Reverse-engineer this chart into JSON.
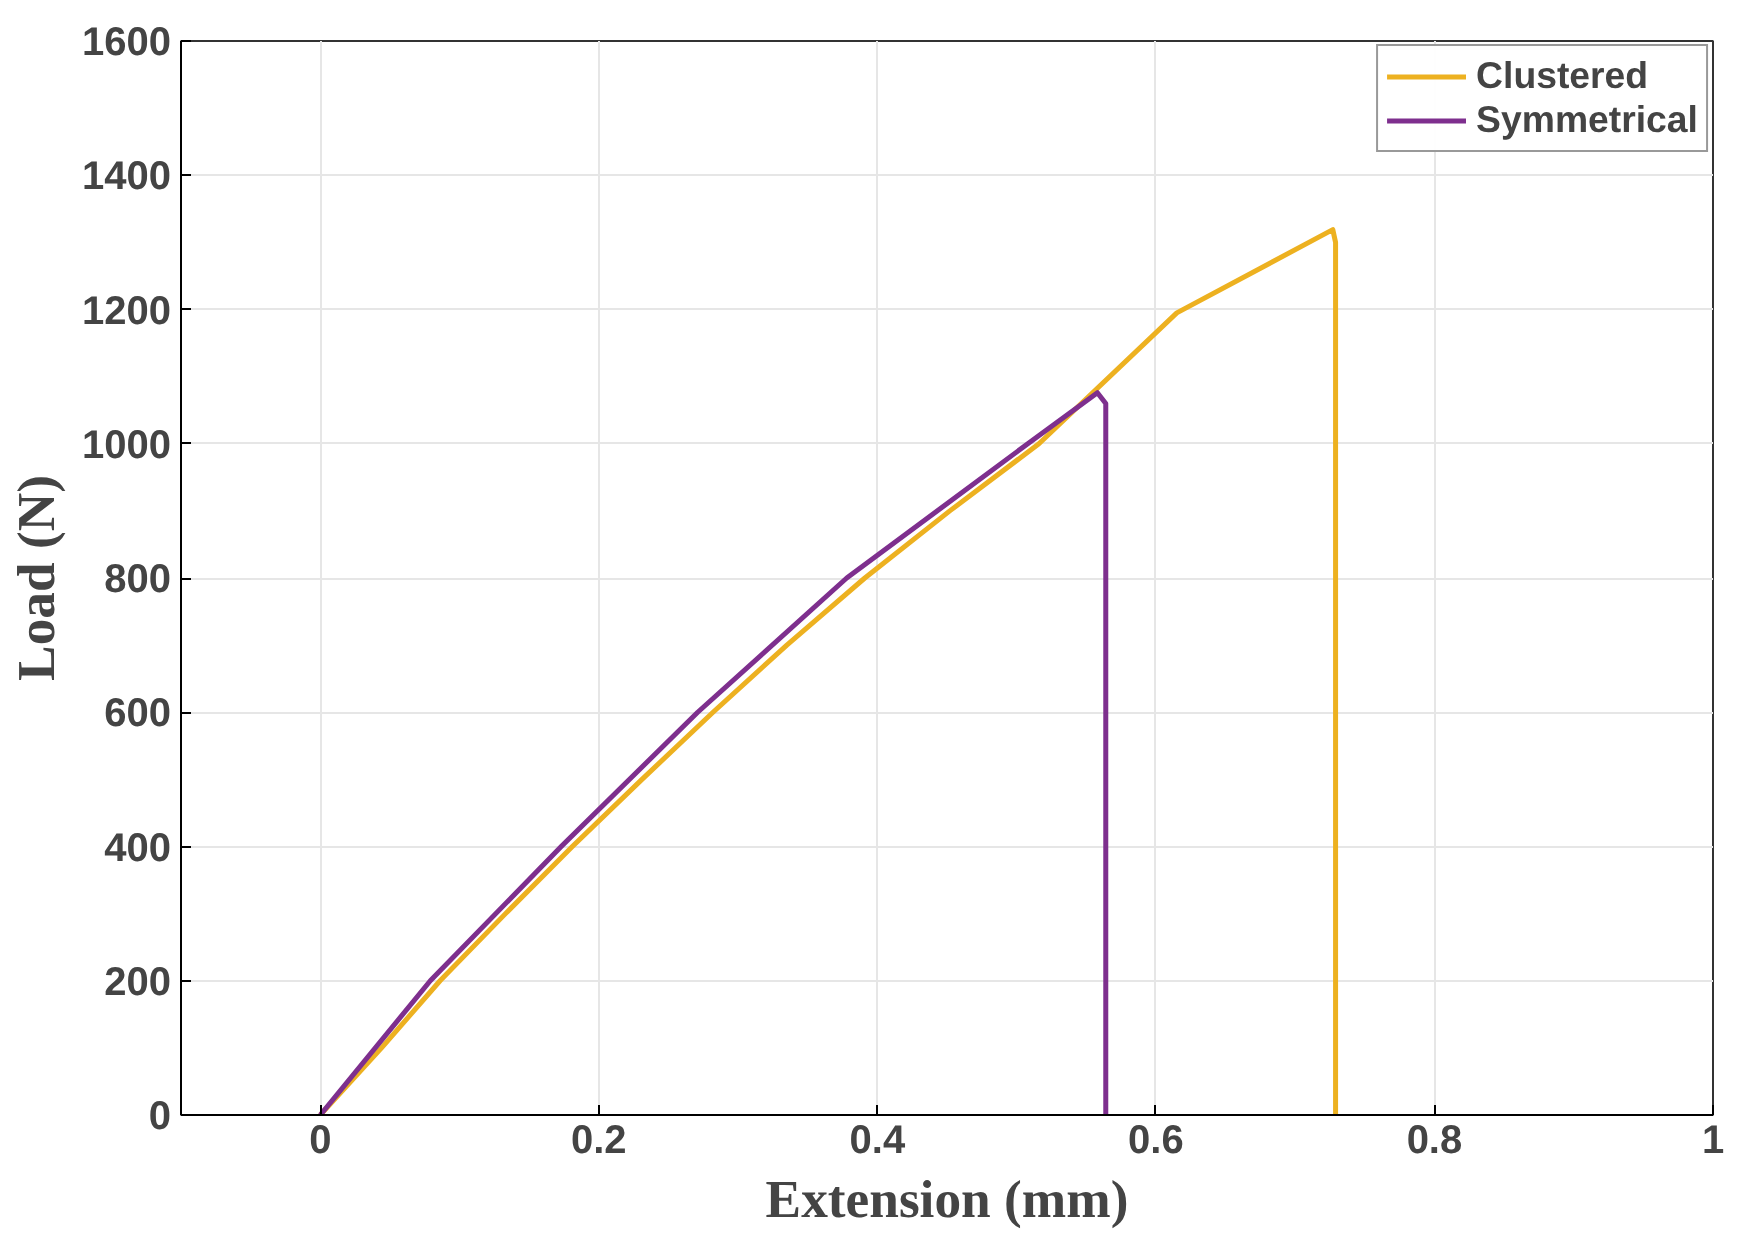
{
  "chart_data": {
    "type": "line",
    "xlabel": "Extension (mm)",
    "ylabel": "Load (N)",
    "xlim": [
      -0.1,
      1
    ],
    "ylim": [
      0,
      1600
    ],
    "xticks": [
      0,
      0.2,
      0.4,
      0.6,
      0.8,
      1
    ],
    "yticks": [
      0,
      200,
      400,
      600,
      800,
      1000,
      1200,
      1400,
      1600
    ],
    "grid": true,
    "legend": "top right",
    "line_style": "solid",
    "series": [
      {
        "name": "Clustered",
        "color": "#edb120",
        "x": [
          0,
          0.044,
          0.086,
          0.133,
          0.181,
          0.231,
          0.282,
          0.335,
          0.391,
          0.452,
          0.516,
          0.615,
          0.727,
          0.729,
          0.729
        ],
        "values": [
          0,
          100,
          200,
          300,
          400,
          500,
          600,
          700,
          800,
          900,
          1000,
          1195,
          1319,
          1300,
          0
        ]
      },
      {
        "name": "Symmetrical",
        "color": "#7e2f8e",
        "x": [
          0,
          0.079,
          0.173,
          0.271,
          0.378,
          0.508,
          0.558,
          0.564,
          0.564
        ],
        "values": [
          0,
          200,
          400,
          600,
          800,
          1000,
          1076,
          1060,
          0
        ]
      }
    ]
  }
}
